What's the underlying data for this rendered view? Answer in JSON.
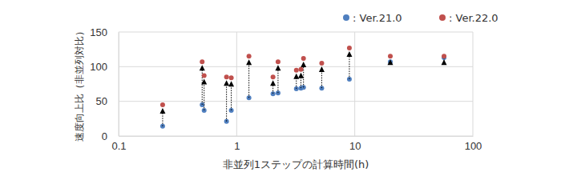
{
  "chart_data": {
    "type": "scatter",
    "xlabel": "非並列1ステップの計算時間(h)",
    "ylabel": "速度向上比（非並列対比）",
    "x": [
      0.236,
      0.51,
      0.53,
      0.82,
      0.9,
      1.27,
      2.03,
      2.24,
      3.2,
      3.5,
      3.68,
      5.25,
      9.0,
      20,
      57
    ],
    "series": [
      {
        "name": ": Ver.21.0",
        "color": "#4f7fbf",
        "marker": "circle",
        "values": [
          14,
          45,
          37,
          21,
          37,
          55,
          61,
          62,
          68,
          69,
          70,
          69,
          82,
          107,
          113
        ]
      },
      {
        "name": ": Ver.22.0",
        "color": "#c0504d",
        "marker": "circle",
        "values": [
          45,
          107,
          87,
          85,
          84,
          115,
          85,
          107,
          95,
          96,
          112,
          105,
          127,
          115,
          115
        ]
      }
    ],
    "log": "x",
    "xlim": [
      0.1,
      100
    ],
    "xticks": [
      0.1,
      1,
      10,
      100
    ],
    "ylim": [
      0,
      150
    ],
    "yticks": [
      0,
      50,
      100,
      150
    ],
    "grid": true,
    "legend": "top-right"
  }
}
